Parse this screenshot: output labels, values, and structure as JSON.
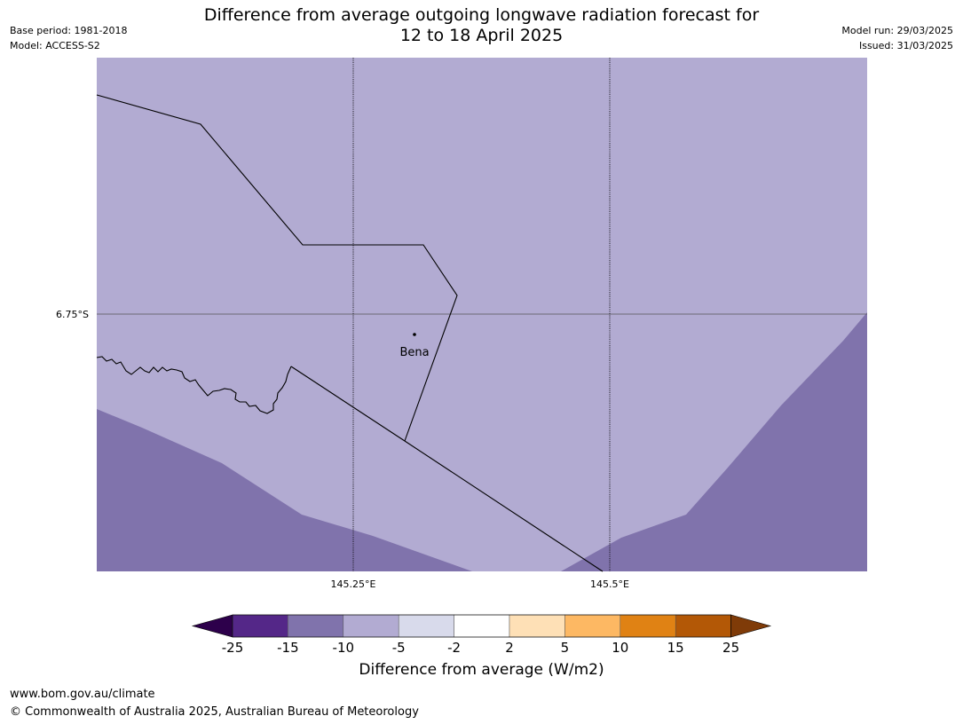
{
  "header": {
    "title_line1": "Difference from average outgoing longwave radiation forecast for",
    "title_line2": "12 to 18 April 2025",
    "base_period": "Base period: 1981-2018",
    "model": "Model: ACCESS-S2",
    "model_run": "Model run: 29/03/2025",
    "issued": "Issued: 31/03/2025"
  },
  "map": {
    "lat_label": "6.75°S",
    "lon_labels": [
      "145.25°E",
      "145.5°E"
    ],
    "place": "Bena",
    "colors": {
      "light_purple": "#b2abd2",
      "mid_purple": "#8073ac",
      "border": "#000000"
    }
  },
  "colorbar": {
    "ticks": [
      "-25",
      "-15",
      "-10",
      "-5",
      "-2",
      "2",
      "5",
      "10",
      "15",
      "25"
    ],
    "colors": [
      "#2d004b",
      "#542788",
      "#8073ac",
      "#b2abd2",
      "#d8daeb",
      "#ffffff",
      "#fee0b6",
      "#fdb863",
      "#e08214",
      "#b35806",
      "#7f3b08"
    ],
    "title": "Difference from average (W/m2)"
  },
  "footer": {
    "url": "www.bom.gov.au/climate",
    "copyright": "© Commonwealth of Australia 2025, Australian Bureau of Meteorology"
  }
}
